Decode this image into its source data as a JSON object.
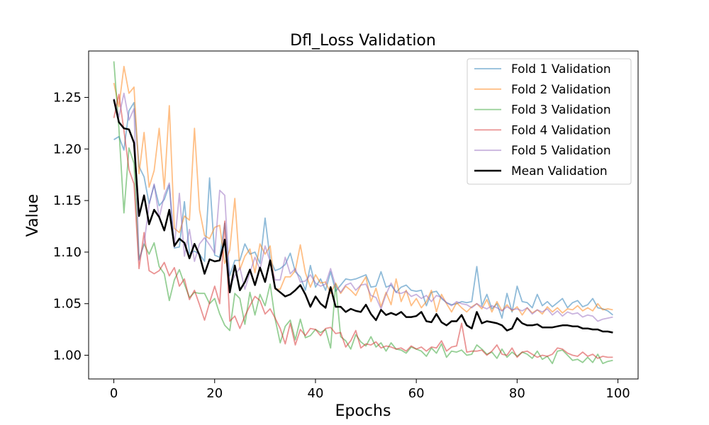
{
  "chart_data": {
    "type": "line",
    "title": "Dfl_Loss Validation",
    "xlabel": "Epochs",
    "ylabel": "Value",
    "xlim": [
      -5,
      104
    ],
    "ylim": [
      0.977,
      1.295
    ],
    "xticks": [
      0,
      20,
      40,
      60,
      80,
      100
    ],
    "yticks": [
      1.0,
      1.05,
      1.1,
      1.15,
      1.2,
      1.25
    ],
    "xtick_labels": [
      "0",
      "20",
      "40",
      "60",
      "80",
      "100"
    ],
    "ytick_labels": [
      "1.00",
      "1.05",
      "1.10",
      "1.15",
      "1.20",
      "1.25"
    ],
    "legend_position": "top-right",
    "grid": false,
    "series": [
      {
        "name": "Fold 1 Validation",
        "color": "#1f77b4",
        "alpha": 0.5,
        "values": [
          1.209,
          1.212,
          1.199,
          1.237,
          1.245,
          1.183,
          1.173,
          1.147,
          1.165,
          1.145,
          1.151,
          1.165,
          1.104,
          1.105,
          1.149,
          1.099,
          1.101,
          1.098,
          1.091,
          1.172,
          1.097,
          1.095,
          1.128,
          1.077,
          1.092,
          1.092,
          1.108,
          1.098,
          1.1,
          1.089,
          1.133,
          1.093,
          1.082,
          1.084,
          1.088,
          1.099,
          1.081,
          1.076,
          1.063,
          1.087,
          1.066,
          1.074,
          1.063,
          1.081,
          1.062,
          1.068,
          1.074,
          1.073,
          1.074,
          1.076,
          1.078,
          1.066,
          1.067,
          1.081,
          1.066,
          1.068,
          1.061,
          1.066,
          1.068,
          1.063,
          1.062,
          1.063,
          1.048,
          1.061,
          1.062,
          1.055,
          1.051,
          1.049,
          1.05,
          1.052,
          1.051,
          1.052,
          1.086,
          1.048,
          1.059,
          1.045,
          1.05,
          1.036,
          1.06,
          1.042,
          1.067,
          1.052,
          1.051,
          1.046,
          1.059,
          1.048,
          1.052,
          1.047,
          1.051,
          1.055,
          1.046,
          1.051,
          1.053,
          1.047,
          1.049,
          1.055,
          1.046,
          1.045,
          1.043,
          1.039
        ]
      },
      {
        "name": "Fold 2 Validation",
        "color": "#ff7f0e",
        "alpha": 0.5,
        "values": [
          1.264,
          1.241,
          1.28,
          1.254,
          1.26,
          1.176,
          1.216,
          1.163,
          1.179,
          1.22,
          1.161,
          1.242,
          1.123,
          1.119,
          1.135,
          1.131,
          1.22,
          1.141,
          1.116,
          1.113,
          1.124,
          1.126,
          1.089,
          1.102,
          1.152,
          1.083,
          1.096,
          1.103,
          1.08,
          1.108,
          1.098,
          1.106,
          1.064,
          1.064,
          1.076,
          1.076,
          1.082,
          1.107,
          1.08,
          1.066,
          1.078,
          1.07,
          1.071,
          1.06,
          1.07,
          1.06,
          1.067,
          1.063,
          1.058,
          1.068,
          1.076,
          1.052,
          1.065,
          1.047,
          1.061,
          1.049,
          1.074,
          1.052,
          1.063,
          1.048,
          1.055,
          1.046,
          1.052,
          1.063,
          1.042,
          1.059,
          1.05,
          1.042,
          1.051,
          1.046,
          1.042,
          1.047,
          1.05,
          1.045,
          1.054,
          1.042,
          1.052,
          1.043,
          1.049,
          1.043,
          1.047,
          1.039,
          1.046,
          1.041,
          1.044,
          1.04,
          1.047,
          1.042,
          1.046,
          1.041,
          1.045,
          1.044,
          1.048,
          1.043,
          1.046,
          1.043,
          1.05,
          1.044,
          1.045,
          1.044
        ]
      },
      {
        "name": "Fold 3 Validation",
        "color": "#2ca02c",
        "alpha": 0.5,
        "values": [
          1.285,
          1.22,
          1.138,
          1.201,
          1.186,
          1.093,
          1.108,
          1.098,
          1.109,
          1.086,
          1.079,
          1.053,
          1.073,
          1.083,
          1.069,
          1.056,
          1.061,
          1.06,
          1.06,
          1.05,
          1.055,
          1.04,
          1.029,
          1.024,
          1.06,
          1.055,
          1.03,
          1.061,
          1.039,
          1.059,
          1.048,
          1.069,
          1.035,
          1.012,
          1.028,
          1.034,
          1.015,
          1.035,
          1.017,
          1.019,
          1.025,
          1.022,
          1.025,
          1.007,
          1.069,
          1.018,
          1.014,
          1.006,
          1.02,
          1.013,
          1.009,
          1.018,
          1.008,
          1.012,
          1.004,
          1.012,
          1.006,
          1.005,
          1.002,
          1.008,
          1.006,
          1.004,
          0.999,
          1.007,
          1.002,
          1.011,
          0.998,
          1.004,
          1.003,
          1.005,
          1.0,
          1.001,
          1.01,
          1.006,
          1.001,
          1.003,
          0.997,
          1.006,
          0.998,
          1.003,
          0.999,
          1.003,
          1.001,
          0.997,
          1.004,
          0.996,
          0.999,
          0.992,
          1.004,
          1.005,
          1.0,
          0.995,
          0.996,
          0.993,
          0.998,
          0.993,
          1.001,
          0.992,
          0.994,
          0.995
        ]
      },
      {
        "name": "Fold 4 Validation",
        "color": "#d62728",
        "alpha": 0.5,
        "values": [
          1.23,
          1.253,
          1.218,
          1.18,
          1.166,
          1.084,
          1.119,
          1.082,
          1.079,
          1.082,
          1.09,
          1.077,
          1.085,
          1.067,
          1.074,
          1.054,
          1.063,
          1.049,
          1.034,
          1.051,
          1.067,
          1.05,
          1.13,
          1.033,
          1.038,
          1.026,
          1.038,
          1.048,
          1.057,
          1.053,
          1.04,
          1.045,
          1.036,
          1.026,
          1.011,
          1.031,
          1.01,
          1.025,
          1.019,
          1.026,
          1.025,
          1.019,
          1.026,
          1.027,
          1.021,
          1.022,
          1.008,
          1.014,
          1.024,
          1.007,
          1.011,
          1.01,
          1.013,
          1.007,
          1.009,
          1.008,
          1.006,
          1.007,
          1.004,
          1.009,
          1.006,
          1.008,
          1.004,
          1.008,
          1.007,
          1.014,
          1.004,
          1.008,
          1.009,
          1.031,
          1.003,
          1.004,
          1.004,
          1.005,
          1.0,
          1.004,
          1.01,
          1.001,
          1.0,
          1.007,
          0.998,
          1.003,
          1.004,
          1.001,
          0.998,
          1.0,
          0.999,
          1.001,
          1.007,
          1.006,
          1.002,
          1.0,
          0.999,
          1.003,
          0.999,
          1.001,
          0.997,
          0.999,
          0.998,
          0.998
        ]
      },
      {
        "name": "Fold 5 Validation",
        "color": "#9467bd",
        "alpha": 0.5,
        "values": [
          1.249,
          1.231,
          1.254,
          1.228,
          1.239,
          1.092,
          1.108,
          1.146,
          1.166,
          1.133,
          1.155,
          1.167,
          1.105,
          1.157,
          1.096,
          1.122,
          1.091,
          1.108,
          1.114,
          1.107,
          1.099,
          1.16,
          1.155,
          1.067,
          1.077,
          1.085,
          1.064,
          1.08,
          1.095,
          1.083,
          1.106,
          1.091,
          1.073,
          1.073,
          1.095,
          1.079,
          1.084,
          1.071,
          1.072,
          1.078,
          1.07,
          1.067,
          1.069,
          1.084,
          1.067,
          1.061,
          1.068,
          1.07,
          1.063,
          1.068,
          1.069,
          1.058,
          1.056,
          1.045,
          1.059,
          1.07,
          1.061,
          1.06,
          1.062,
          1.057,
          1.059,
          1.055,
          1.058,
          1.052,
          1.058,
          1.056,
          1.051,
          1.048,
          1.052,
          1.05,
          1.049,
          1.046,
          1.05,
          1.047,
          1.045,
          1.048,
          1.046,
          1.043,
          1.047,
          1.044,
          1.045,
          1.043,
          1.046,
          1.04,
          1.044,
          1.042,
          1.045,
          1.039,
          1.043,
          1.038,
          1.042,
          1.04,
          1.041,
          1.037,
          1.039,
          1.038,
          1.033,
          1.035,
          1.036,
          1.037
        ]
      },
      {
        "name": "Mean Validation",
        "color": "#000000",
        "alpha": 1.0,
        "values": [
          1.248,
          1.226,
          1.22,
          1.219,
          1.206,
          1.135,
          1.155,
          1.127,
          1.141,
          1.134,
          1.121,
          1.141,
          1.106,
          1.113,
          1.109,
          1.094,
          1.108,
          1.097,
          1.079,
          1.093,
          1.091,
          1.092,
          1.112,
          1.061,
          1.087,
          1.063,
          1.071,
          1.083,
          1.068,
          1.085,
          1.071,
          1.092,
          1.065,
          1.061,
          1.057,
          1.059,
          1.063,
          1.068,
          1.059,
          1.047,
          1.057,
          1.05,
          1.046,
          1.066,
          1.047,
          1.047,
          1.042,
          1.045,
          1.043,
          1.042,
          1.049,
          1.04,
          1.034,
          1.044,
          1.039,
          1.041,
          1.039,
          1.042,
          1.037,
          1.037,
          1.038,
          1.042,
          1.033,
          1.032,
          1.04,
          1.032,
          1.029,
          1.033,
          1.033,
          1.039,
          1.029,
          1.026,
          1.042,
          1.031,
          1.033,
          1.032,
          1.031,
          1.029,
          1.024,
          1.026,
          1.036,
          1.031,
          1.029,
          1.029,
          1.03,
          1.027,
          1.027,
          1.027,
          1.028,
          1.029,
          1.029,
          1.028,
          1.028,
          1.026,
          1.026,
          1.025,
          1.025,
          1.023,
          1.023,
          1.022
        ]
      }
    ]
  }
}
